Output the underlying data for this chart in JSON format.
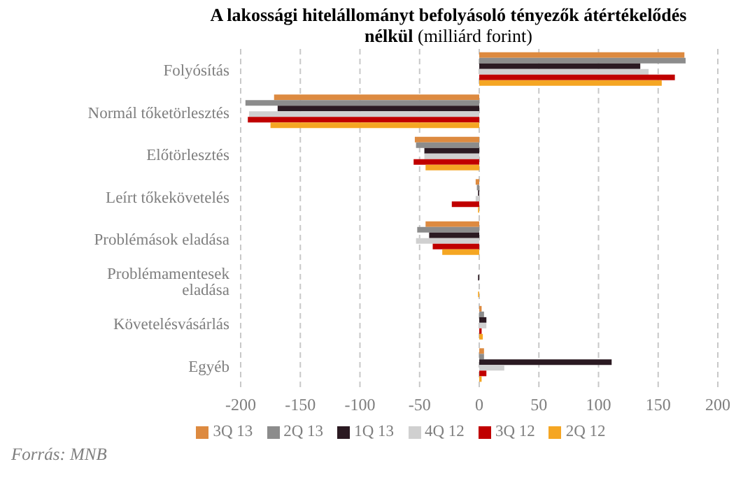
{
  "chart_data": {
    "type": "bar",
    "orientation": "horizontal",
    "title": "A lakossági hitelállományt befolyásoló tényezők átértékelődés nélkül",
    "subtitle": "(milliárd forint)",
    "categories": [
      "Folyósítás",
      "Normál tőketörlesztés",
      "Előtörlesztés",
      "Leírt tőkekövetelés",
      "Problémások eladása",
      "Problémamentesek eladása",
      "Követelésvásárlás",
      "Egyéb"
    ],
    "series": [
      {
        "name": "3Q 13",
        "color": "#dd8a40",
        "values": [
          172,
          -172,
          -54,
          -3,
          -45,
          0,
          2,
          4
        ]
      },
      {
        "name": "2Q 13",
        "color": "#8c8c8c",
        "values": [
          173,
          -196,
          -53,
          -2,
          -52,
          0,
          4,
          4
        ]
      },
      {
        "name": "1Q 13",
        "color": "#2b1a22",
        "values": [
          135,
          -169,
          -46,
          -1,
          -42,
          -1,
          6,
          111
        ]
      },
      {
        "name": "4Q 12",
        "color": "#d0d0d0",
        "values": [
          142,
          -193,
          -46,
          -3,
          -53,
          0,
          6,
          21
        ]
      },
      {
        "name": "3Q 12",
        "color": "#c00000",
        "values": [
          164,
          -194,
          -55,
          -23,
          -39,
          0,
          2,
          6
        ]
      },
      {
        "name": "2Q 12",
        "color": "#f5a623",
        "values": [
          153,
          -175,
          -45,
          -1,
          -31,
          -1,
          3,
          2
        ]
      }
    ],
    "xlim": [
      -200,
      200
    ],
    "xticks": [
      -200,
      -150,
      -100,
      -50,
      0,
      50,
      100,
      150,
      200
    ],
    "grid": "x",
    "legend": "bottom",
    "annotations": [
      "Forrás: MNB"
    ]
  }
}
